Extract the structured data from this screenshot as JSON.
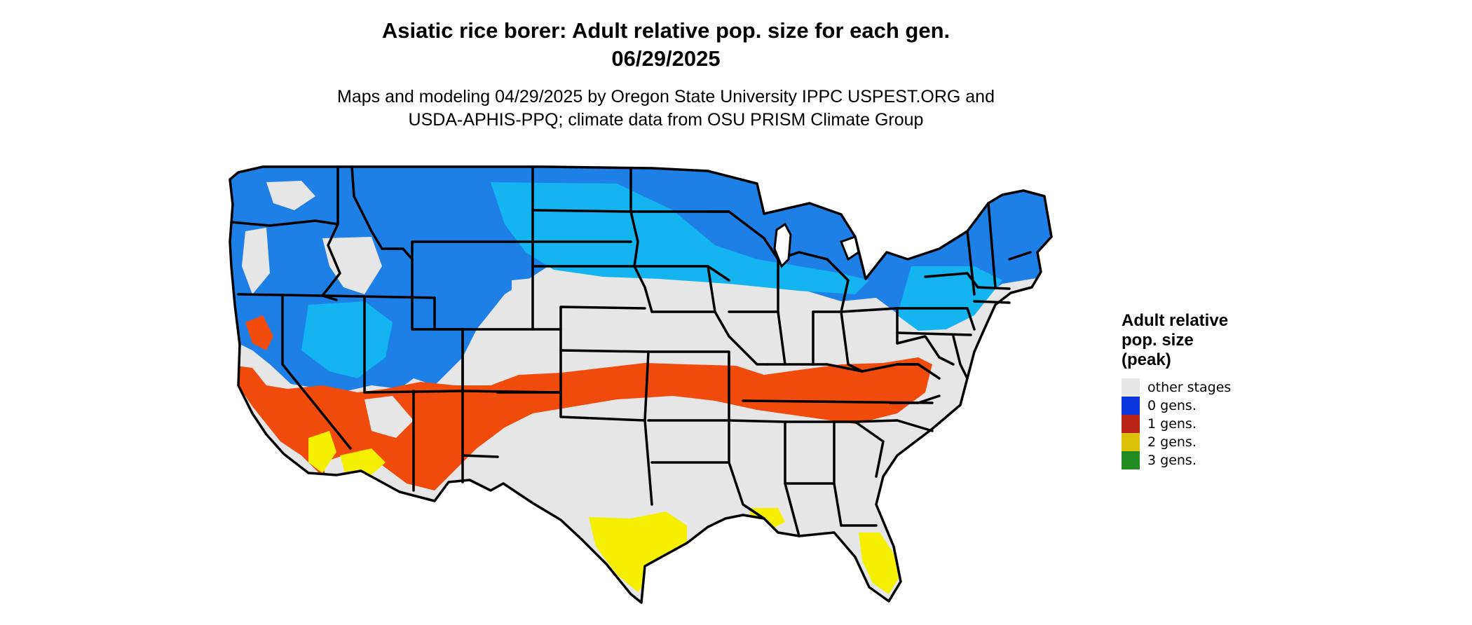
{
  "title_line1": "Asiatic rice borer: Adult relative pop. size for each gen.",
  "title_line2": "06/29/2025",
  "subtitle_line1": "Maps and modeling 04/29/2025 by Oregon State University IPPC USPEST.ORG and",
  "subtitle_line2": "USDA-APHIS-PPQ; climate data from OSU PRISM Climate Group",
  "legend": {
    "title_line1": "Adult relative",
    "title_line2": "pop. size",
    "title_line3": "(peak)",
    "items": [
      {
        "label": "other stages",
        "color": "#e6e6e6"
      },
      {
        "label": "0 gens.",
        "color": "#0a34dc"
      },
      {
        "label": "1 gens.",
        "color": "#b82416"
      },
      {
        "label": "2 gens.",
        "color": "#dcc20a"
      },
      {
        "label": "3 gens.",
        "color": "#228b22"
      }
    ]
  },
  "map_colors": {
    "land": "#e6e6e6",
    "blue_dark": "#1e7fe6",
    "blue_light": "#14b4f0",
    "orange": "#f04a0c",
    "yellow": "#f5f000",
    "border": "#000000"
  }
}
